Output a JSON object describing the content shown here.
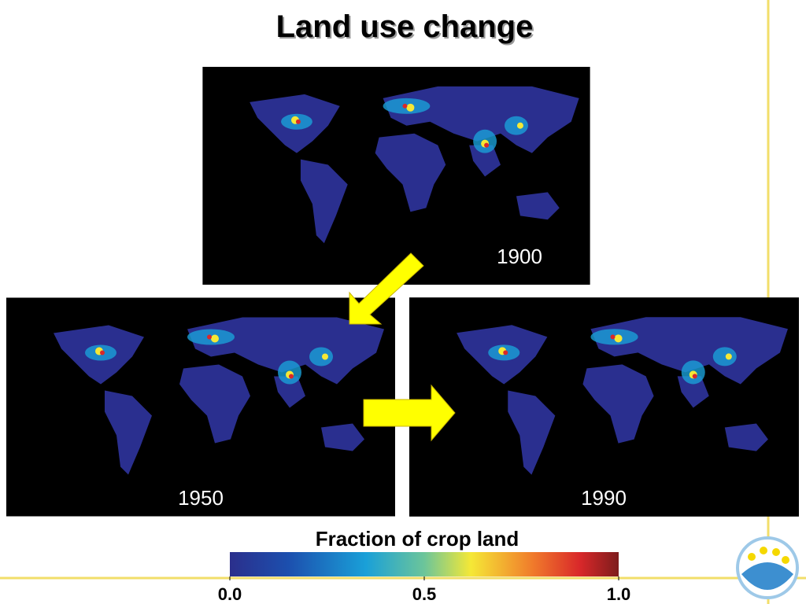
{
  "title": "Land use change",
  "maps": [
    {
      "year": "1900"
    },
    {
      "year": "1950"
    },
    {
      "year": "1990"
    }
  ],
  "colorbar": {
    "label": "Fraction of crop land",
    "range": [
      0,
      1
    ],
    "ticks": [
      {
        "value": 0,
        "label": "0.0"
      },
      {
        "value": 0.5,
        "label": "0.5"
      },
      {
        "value": 1,
        "label": "1.0"
      }
    ]
  }
}
